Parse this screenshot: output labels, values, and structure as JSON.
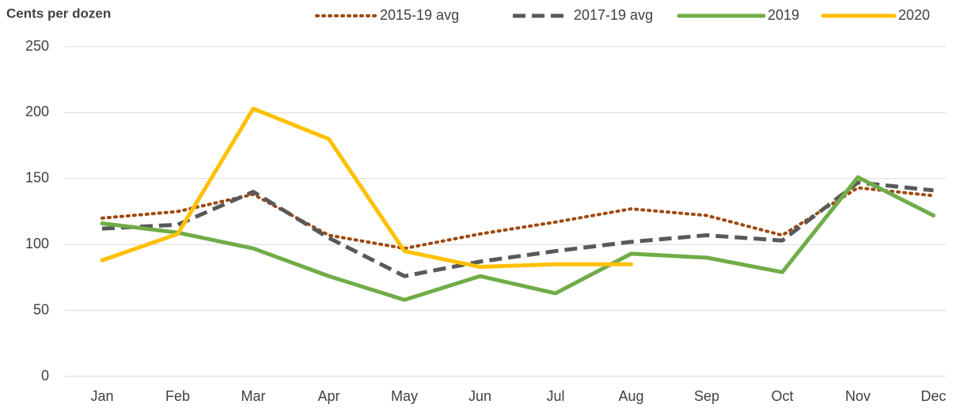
{
  "chart_data": {
    "type": "line",
    "title": "Cents per dozen",
    "categories": [
      "Jan",
      "Feb",
      "Mar",
      "Apr",
      "May",
      "Jun",
      "Jul",
      "Aug",
      "Sep",
      "Oct",
      "Nov",
      "Dec"
    ],
    "series": [
      {
        "name": "2015-19 avg",
        "color": "#9e480e",
        "dash": "dotted",
        "values": [
          120,
          125,
          138,
          107,
          97,
          108,
          117,
          127,
          122,
          107,
          143,
          137
        ]
      },
      {
        "name": "2017-19 avg",
        "color": "#595959",
        "dash": "dashed",
        "values": [
          112,
          115,
          140,
          105,
          76,
          87,
          95,
          102,
          107,
          103,
          147,
          141
        ]
      },
      {
        "name": "2019",
        "color": "#70ad47",
        "dash": "solid",
        "values": [
          116,
          109,
          97,
          76,
          58,
          76,
          63,
          93,
          90,
          79,
          151,
          122
        ]
      },
      {
        "name": "2020",
        "color": "#ffc000",
        "dash": "solid",
        "values": [
          88,
          108,
          203,
          180,
          95,
          83,
          85,
          85,
          null,
          null,
          null,
          null
        ]
      }
    ],
    "ylim": [
      0,
      250
    ],
    "yticks": [
      0,
      50,
      100,
      150,
      200,
      250
    ],
    "grid": true
  }
}
